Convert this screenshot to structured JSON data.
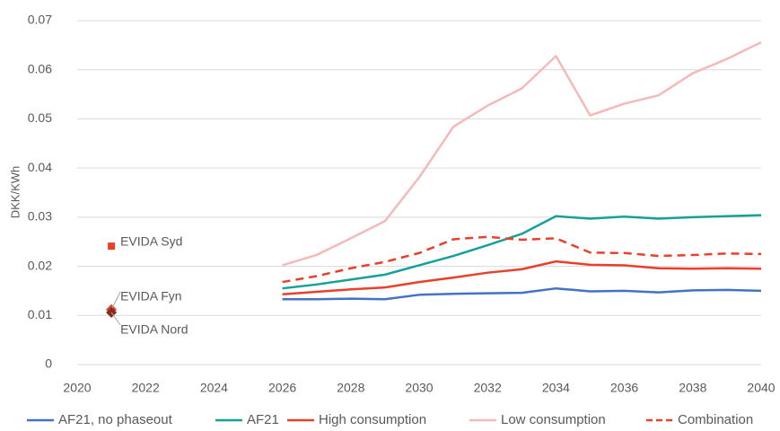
{
  "chart_data": {
    "type": "line",
    "ylabel": "DKK/KWh",
    "x": [
      2026,
      2027,
      2028,
      2029,
      2030,
      2031,
      2032,
      2033,
      2034,
      2035,
      2036,
      2037,
      2038,
      2039,
      2040
    ],
    "series": [
      {
        "name": "AF21, no phaseout",
        "color": "#4472c4",
        "values": [
          0.0133,
          0.0133,
          0.0134,
          0.0133,
          0.0142,
          0.0144,
          0.0145,
          0.0146,
          0.0155,
          0.0149,
          0.015,
          0.0147,
          0.0151,
          0.0152,
          0.015
        ]
      },
      {
        "name": "AF21",
        "color": "#17a09a",
        "values": [
          0.0155,
          0.0163,
          0.0173,
          0.0183,
          0.0202,
          0.0221,
          0.0243,
          0.0266,
          0.0302,
          0.0297,
          0.0301,
          0.0297,
          0.03,
          0.0302,
          0.0304
        ]
      },
      {
        "name": "High consumption",
        "color": "#e8402a",
        "values": [
          0.0143,
          0.0148,
          0.0153,
          0.0157,
          0.0168,
          0.0177,
          0.0187,
          0.0194,
          0.021,
          0.0203,
          0.0202,
          0.0196,
          0.0195,
          0.0196,
          0.0195
        ]
      },
      {
        "name": "Low consumption",
        "color": "#f5b9b9",
        "values": [
          0.0202,
          0.0223,
          0.0257,
          0.0292,
          0.0381,
          0.0484,
          0.0527,
          0.0562,
          0.0628,
          0.0507,
          0.0531,
          0.0548,
          0.0593,
          0.0622,
          0.0656
        ]
      },
      {
        "name": "Combination",
        "color": "#e8402a",
        "dashed": true,
        "values": [
          0.0168,
          0.018,
          0.0196,
          0.0209,
          0.0227,
          0.0255,
          0.026,
          0.0254,
          0.0257,
          0.0228,
          0.0227,
          0.0221,
          0.0223,
          0.0226,
          0.0225
        ]
      }
    ],
    "points": [
      {
        "label": "EVIDA Syd",
        "x": 2021,
        "y": 0.0241,
        "color": "#e8402a",
        "marker": "square"
      },
      {
        "label": "EVIDA Fyn",
        "x": 2021,
        "y": 0.0112,
        "color": "#e8402a",
        "marker": "diamond"
      },
      {
        "label": "EVIDA Nord",
        "x": 2021,
        "y": 0.0106,
        "color": "#8b2a1e",
        "marker": "diamond"
      }
    ],
    "xlim": [
      2020,
      2040
    ],
    "xticks": [
      2020,
      2022,
      2024,
      2026,
      2028,
      2030,
      2032,
      2034,
      2036,
      2038,
      2040
    ],
    "ylim": [
      0,
      0.07
    ],
    "yticks": [
      0,
      0.01,
      0.02,
      0.03,
      0.04,
      0.05,
      0.06,
      0.07
    ],
    "grid": true,
    "legend": "bottom"
  }
}
